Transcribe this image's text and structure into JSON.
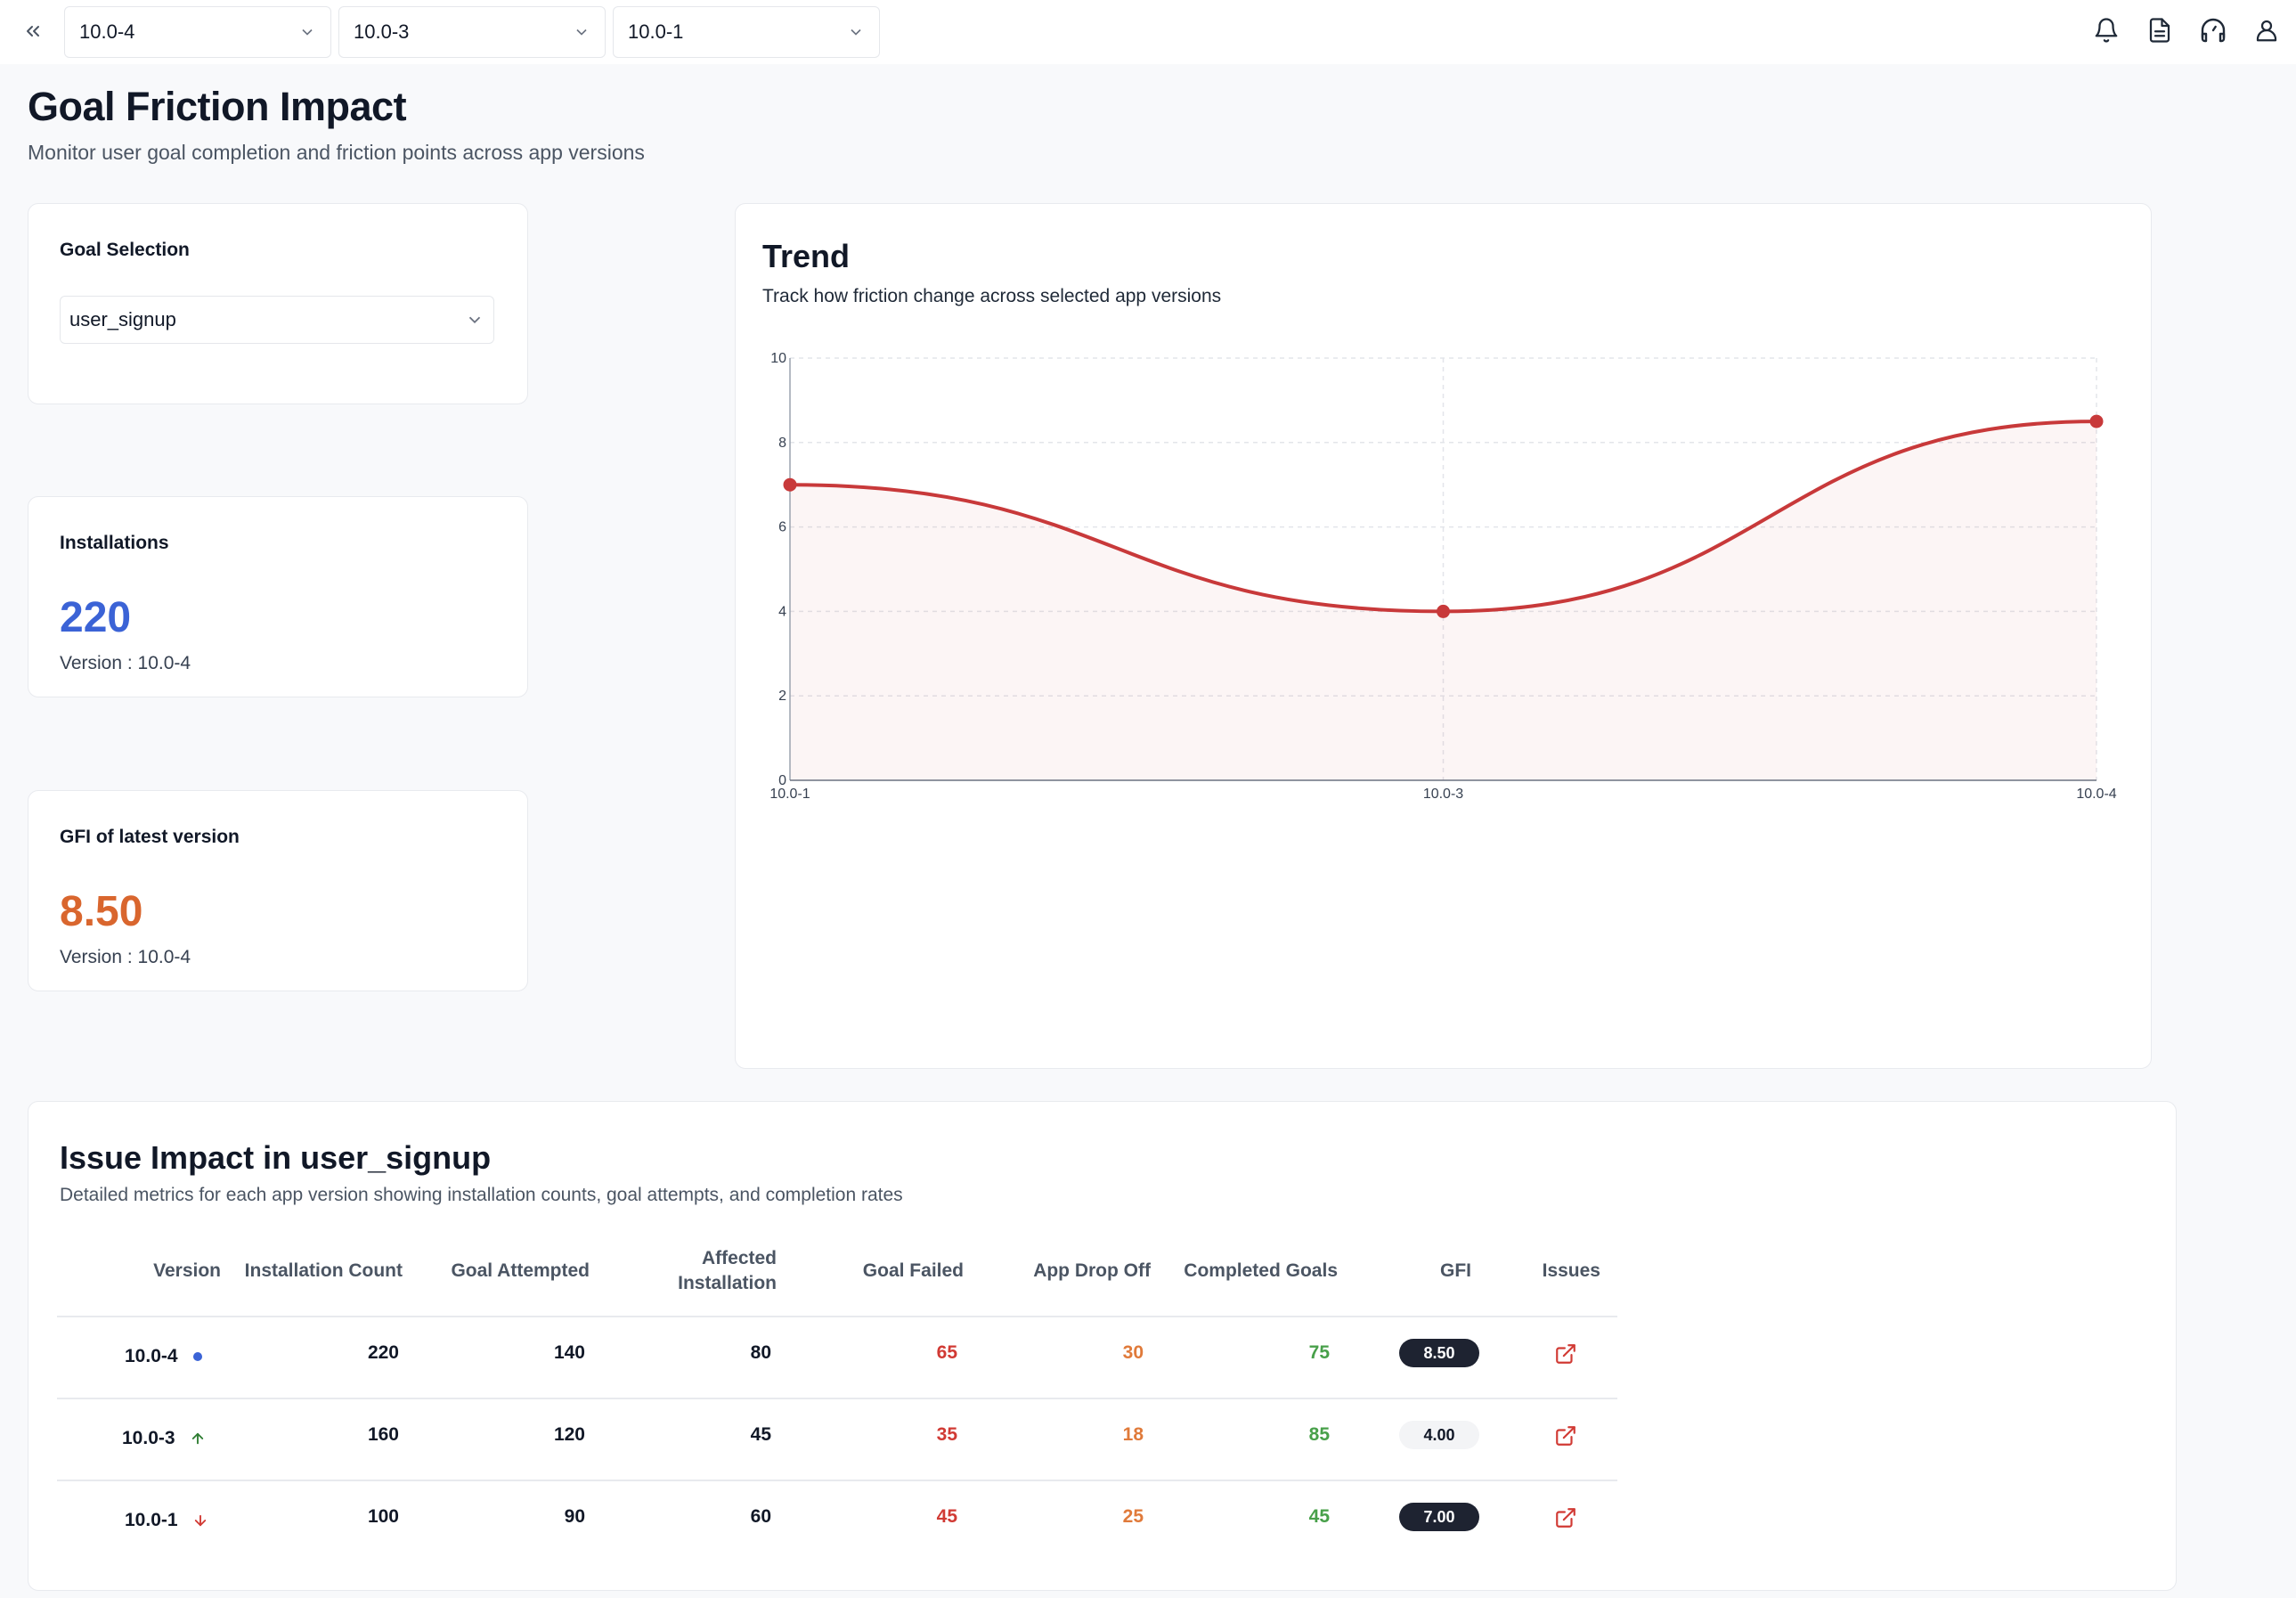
{
  "topbar": {
    "versions": [
      "10.0-4",
      "10.0-3",
      "10.0-1"
    ],
    "icons": [
      "bell-icon",
      "document-icon",
      "support-headset-icon",
      "user-icon"
    ]
  },
  "header": {
    "title": "Goal Friction Impact",
    "subtitle": "Monitor user goal completion and friction points across app versions"
  },
  "goal_card": {
    "label": "Goal Selection",
    "selected": "user_signup"
  },
  "installations_card": {
    "label": "Installations",
    "value": "220",
    "note": "Version : 10.0-4"
  },
  "gfi_card": {
    "label": "GFI of latest version",
    "value": "8.50",
    "note": "Version : 10.0-4"
  },
  "trend": {
    "title": "Trend",
    "subtitle": "Track how friction change across selected app versions"
  },
  "chart_data": {
    "type": "line",
    "categories": [
      "10.0-1",
      "10.0-3",
      "10.0-4"
    ],
    "values": [
      7.0,
      4.0,
      8.5
    ],
    "ylim": [
      0,
      10
    ],
    "yticks": [
      "0",
      "2",
      "4",
      "6",
      "8",
      "10"
    ],
    "grid": true,
    "area_fill": true,
    "smooth": true,
    "color": "#c8393a"
  },
  "table": {
    "title": "Issue Impact in user_signup",
    "subtitle": "Detailed metrics for each app version showing installation counts, goal attempts, and completion rates",
    "headers": {
      "version": "Version",
      "installation_count": "Installation Count",
      "goal_attempted": "Goal Attempted",
      "affected_1": "Affected",
      "affected_2": "Installation",
      "goal_failed": "Goal Failed",
      "app_drop_off": "App Drop Off",
      "completed_goals": "Completed Goals",
      "gfi": "GFI",
      "issues": "Issues"
    },
    "rows": [
      {
        "version": "10.0-4",
        "indicator": "dot",
        "installation_count": "220",
        "goal_attempted": "140",
        "affected_installation": "80",
        "goal_failed": "65",
        "app_drop_off": "30",
        "completed_goals": "75",
        "gfi": "8.50",
        "gfi_style": "dark"
      },
      {
        "version": "10.0-3",
        "indicator": "arrow-up",
        "installation_count": "160",
        "goal_attempted": "120",
        "affected_installation": "45",
        "goal_failed": "35",
        "app_drop_off": "18",
        "completed_goals": "85",
        "gfi": "4.00",
        "gfi_style": "light"
      },
      {
        "version": "10.0-1",
        "indicator": "arrow-down",
        "installation_count": "100",
        "goal_attempted": "90",
        "affected_installation": "60",
        "goal_failed": "45",
        "app_drop_off": "25",
        "completed_goals": "45",
        "gfi": "7.00",
        "gfi_style": "dark"
      }
    ]
  },
  "colors": {
    "accent_blue": "#3b63d6",
    "accent_orange": "#d9662e",
    "line_red": "#c8393a",
    "green": "#48a04a"
  }
}
